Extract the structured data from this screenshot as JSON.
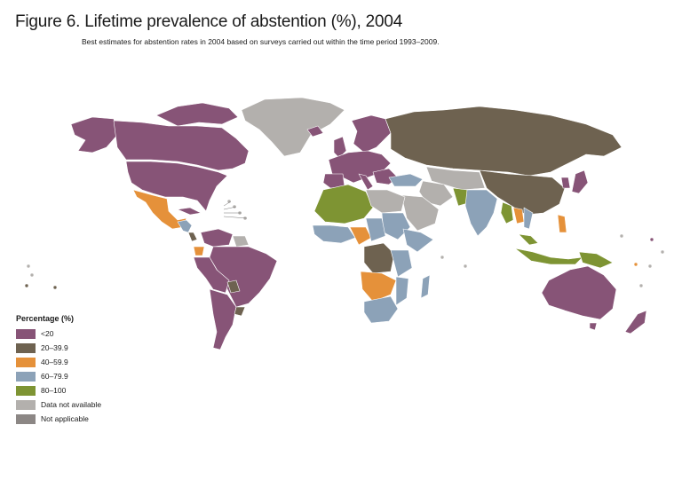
{
  "title": "Figure 6. Lifetime prevalence of abstention (%), 2004",
  "subtitle": "Best estimates for abstention rates in 2004 based on surveys carried out within the time period 1993–2009.",
  "legend": {
    "title": "Percentage (%)",
    "items": [
      {
        "label": "<20",
        "color": "#875477"
      },
      {
        "label": "20–39.9",
        "color": "#6e6250"
      },
      {
        "label": "40–59.9",
        "color": "#e5913a"
      },
      {
        "label": "60–79.9",
        "color": "#8ca2b8"
      },
      {
        "label": "80–100",
        "color": "#7e9433"
      },
      {
        "label": "Data not available",
        "color": "#b3b0ad"
      },
      {
        "label": "Not applicable",
        "color": "#8c8785"
      }
    ]
  }
}
